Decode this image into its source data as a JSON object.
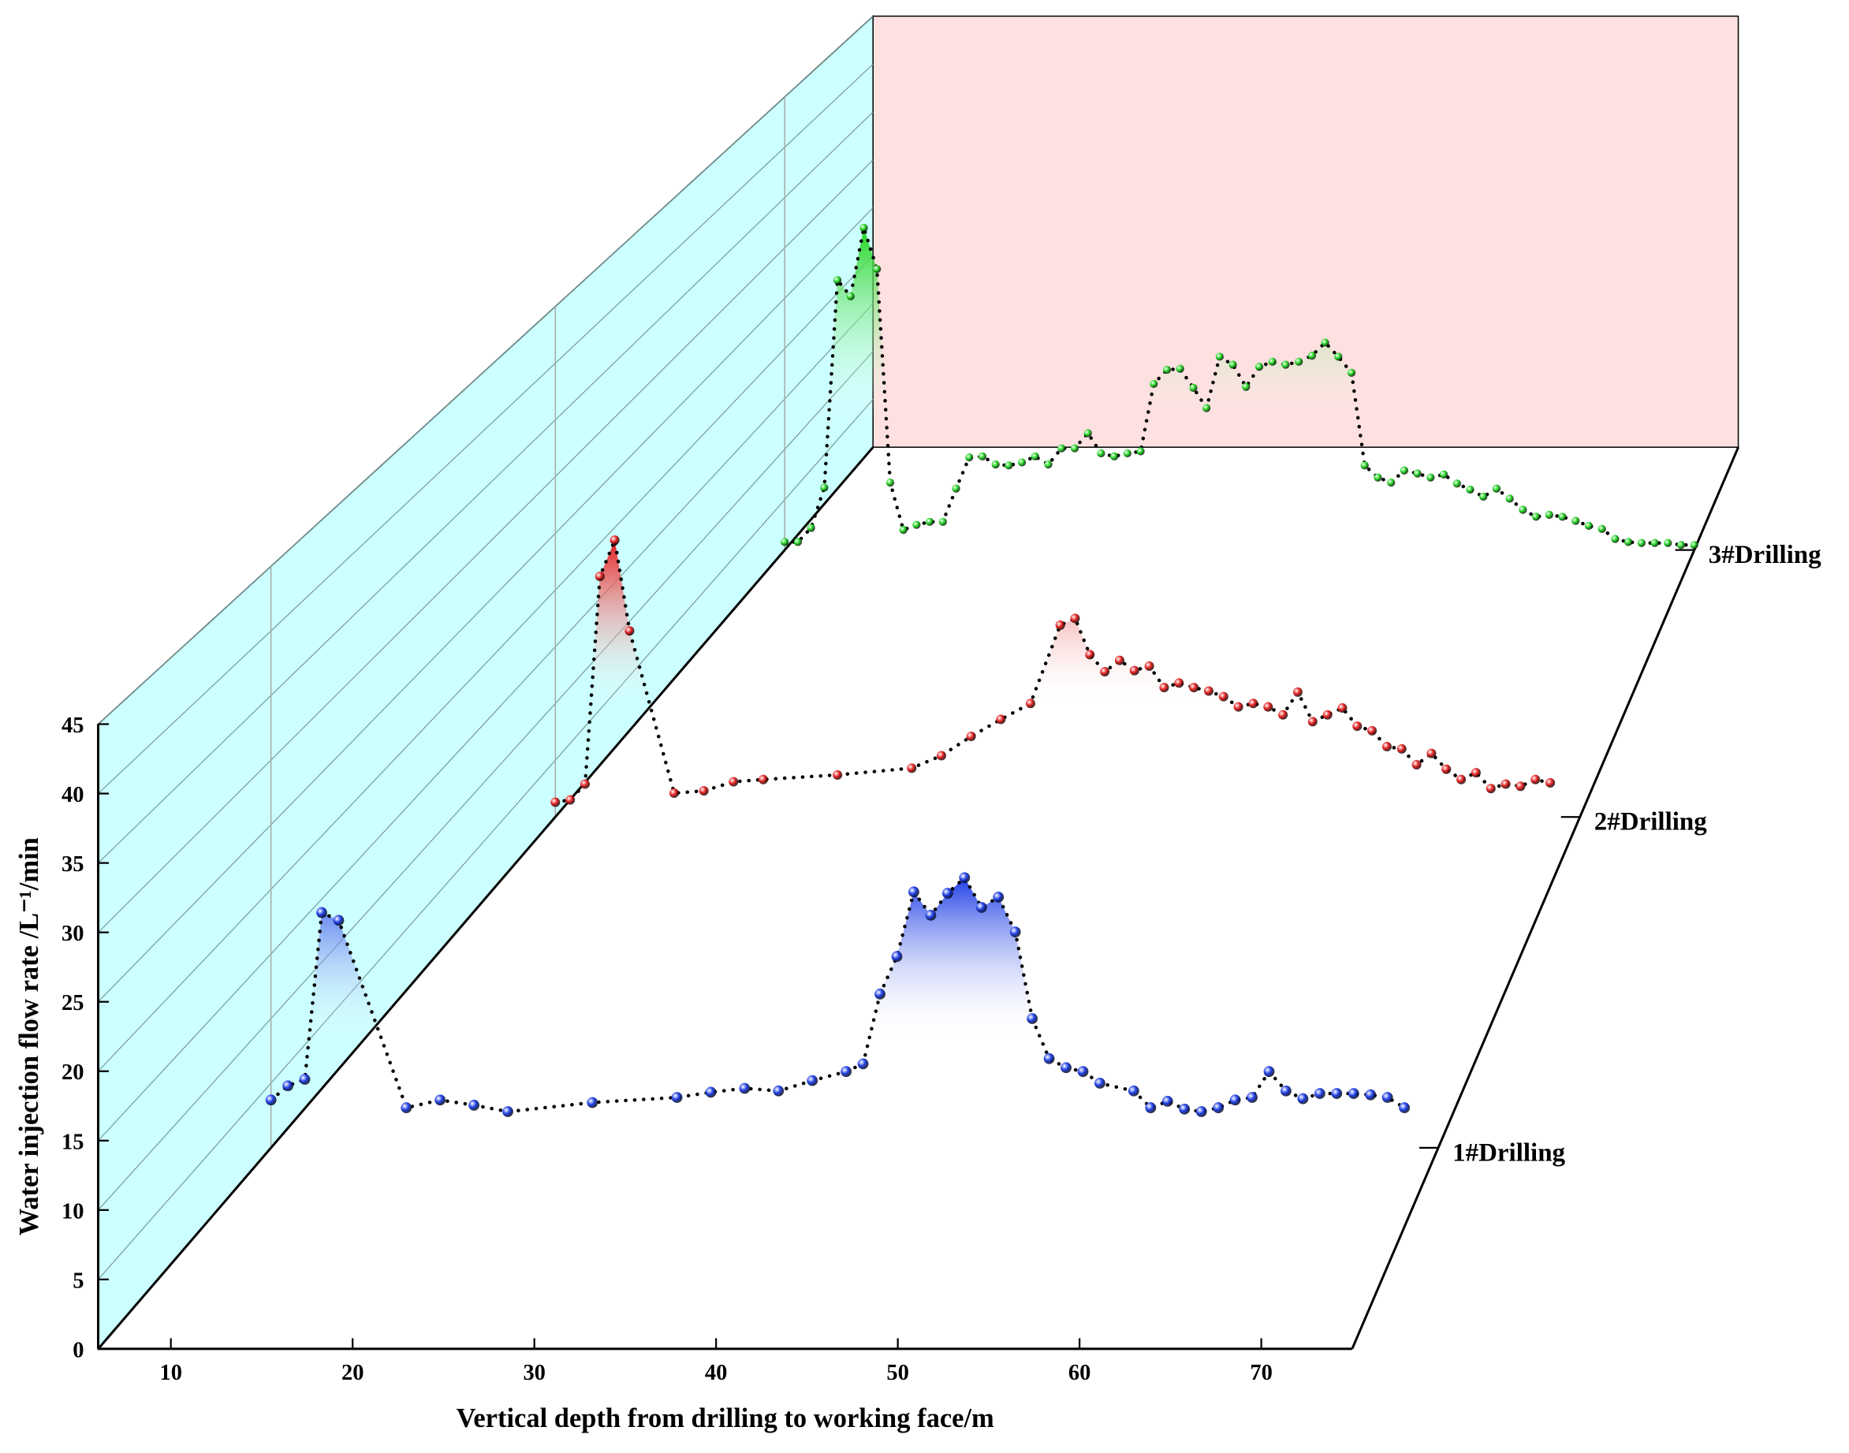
{
  "chart_data": {
    "type": "waterfall3d",
    "xlabel": "Vertical depth from drilling to working face/m",
    "ylabel": "Water injection flow rate /L⁻¹/min",
    "xlim": [
      6,
      75
    ],
    "ylim": [
      0,
      45
    ],
    "xticks": [
      10,
      20,
      30,
      40,
      50,
      60,
      70
    ],
    "yticks": [
      0,
      5,
      10,
      15,
      20,
      25,
      30,
      35,
      40,
      45
    ],
    "grid": true,
    "wall_color": "#ccffff",
    "back_color": "#ffe0e0",
    "series": [
      {
        "name": "1#Drilling",
        "color": "#1f3fe6",
        "x": [
          6,
          7,
          8,
          9,
          10,
          14,
          16,
          18,
          20,
          25,
          30,
          32,
          34,
          36,
          38,
          40,
          41,
          42,
          43,
          44,
          45,
          46,
          47,
          48,
          49,
          50,
          51,
          52,
          53,
          54,
          55,
          57,
          58,
          59,
          60,
          61,
          62,
          63,
          64,
          65,
          66,
          67,
          68,
          69,
          70,
          71,
          72,
          73
        ],
        "values": [
          3.7,
          4.8,
          5.3,
          18.2,
          17.6,
          3.1,
          3.7,
          3.3,
          2.8,
          3.5,
          3.9,
          4.3,
          4.6,
          4.4,
          5.2,
          5.9,
          6.5,
          11.9,
          14.8,
          19.8,
          18.0,
          19.7,
          20.9,
          18.6,
          19.4,
          16.7,
          10.0,
          6.9,
          6.2,
          5.9,
          5.0,
          4.4,
          3.1,
          3.6,
          3.0,
          2.8,
          3.1,
          3.7,
          3.9,
          5.9,
          4.4,
          3.8,
          4.2,
          4.2,
          4.2,
          4.1,
          3.9,
          3.1
        ]
      },
      {
        "name": "2#Drilling",
        "color": "#e62020",
        "x": [
          6,
          7,
          8,
          9,
          10,
          11,
          14,
          16,
          18,
          20,
          25,
          30,
          32,
          34,
          36,
          38,
          40,
          41,
          42,
          43,
          44,
          45,
          46,
          47,
          48,
          49,
          50,
          51,
          52,
          53,
          54,
          55,
          56,
          57,
          58,
          59,
          60,
          61,
          62,
          63,
          64,
          65,
          66,
          67,
          68,
          69,
          70,
          71,
          72,
          73
        ],
        "values": [
          1.3,
          1.5,
          2.9,
          21.2,
          24.4,
          16.4,
          2.1,
          2.3,
          3.1,
          3.3,
          3.7,
          4.3,
          5.4,
          7.1,
          8.6,
          10.0,
          16.9,
          17.5,
          14.3,
          12.8,
          13.8,
          12.9,
          13.3,
          11.4,
          11.8,
          11.4,
          11.1,
          10.6,
          9.7,
          10.0,
          9.7,
          9.0,
          11.0,
          8.4,
          9.0,
          9.6,
          8.0,
          7.6,
          6.2,
          6.0,
          4.6,
          5.6,
          4.2,
          3.3,
          3.9,
          2.5,
          2.9,
          2.7,
          3.3,
          3.0
        ]
      },
      {
        "name": "3#Drilling",
        "color": "#22d622",
        "x": [
          6,
          7,
          8,
          9,
          10,
          11,
          12,
          13,
          14,
          15,
          16,
          17,
          18,
          19,
          20,
          21,
          22,
          23,
          24,
          25,
          26,
          27,
          28,
          29,
          30,
          31,
          32,
          33,
          34,
          35,
          36,
          37,
          38,
          39,
          40,
          41,
          42,
          43,
          44,
          45,
          46,
          47,
          48,
          49,
          50,
          51,
          52,
          53,
          54,
          55,
          56,
          57,
          58,
          59,
          60,
          61,
          62,
          63,
          64,
          65,
          66,
          67,
          68,
          69,
          70,
          71,
          72,
          73,
          74,
          75
        ],
        "values": [
          0.8,
          0.8,
          2.2,
          6.2,
          26.8,
          25.2,
          32.0,
          27.9,
          6.7,
          2.0,
          2.5,
          2.8,
          2.8,
          6.1,
          9.2,
          9.3,
          8.5,
          8.4,
          8.7,
          9.3,
          8.5,
          10.1,
          10.1,
          11.6,
          9.6,
          9.3,
          9.6,
          9.8,
          16.5,
          17.9,
          18.0,
          16.1,
          14.1,
          19.2,
          18.4,
          16.2,
          18.2,
          18.7,
          18.4,
          18.7,
          19.3,
          20.6,
          19.2,
          17.6,
          8.4,
          7.2,
          6.7,
          7.9,
          7.6,
          7.2,
          7.5,
          6.6,
          6.0,
          5.3,
          6.1,
          5.1,
          4.0,
          3.3,
          3.5,
          3.3,
          2.9,
          2.4,
          2.1,
          1.1,
          0.8,
          0.7,
          0.7,
          0.7,
          0.5,
          0.5
        ]
      }
    ]
  }
}
